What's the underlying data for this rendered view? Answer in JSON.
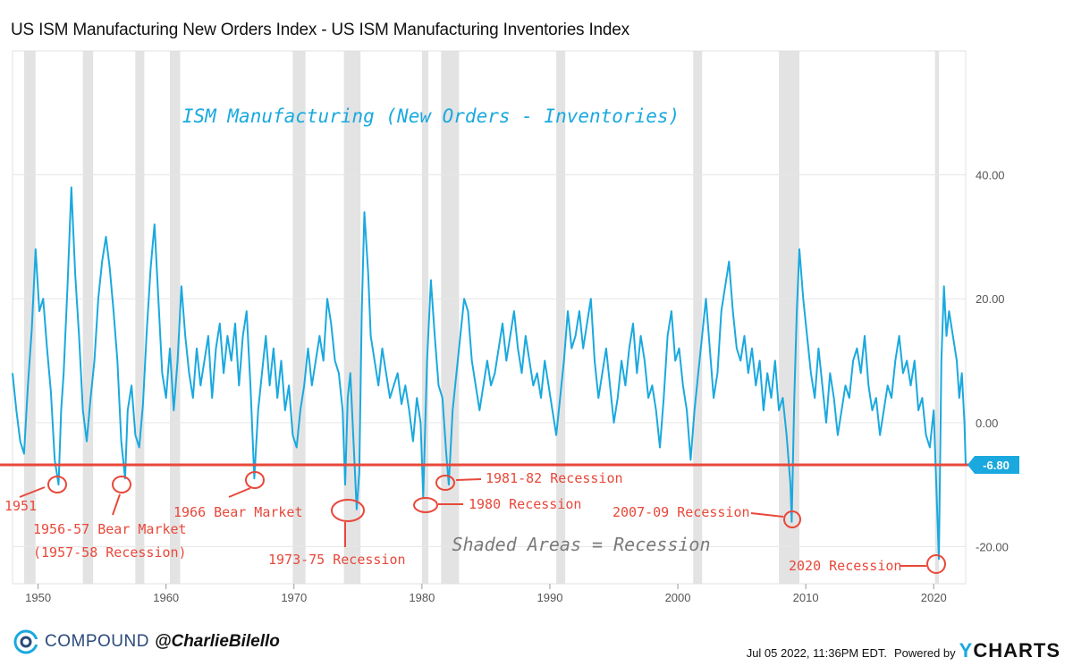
{
  "header": {
    "title": "US ISM Manufacturing New Orders Index - US ISM Manufacturing Inventories Index"
  },
  "footer": {
    "brand": "COMPOUND",
    "handle": "@CharlieBilello",
    "date": "Jul 05 2022, 11:36PM EDT.",
    "powered_by": "Powered by",
    "ycharts_y": "Y",
    "ycharts_rest": "CHARTS"
  },
  "colors": {
    "series": "#1aa9df",
    "annotation": "#e8483a",
    "recession": "#e3e3e3",
    "grid": "#e6e6e6"
  },
  "chart_data": {
    "type": "line",
    "title": "ISM Manufacturing (New Orders - Inventories)",
    "subtitle": "Shaded Areas = Recession",
    "x_range": [
      1948.0,
      2022.5
    ],
    "ylim": [
      -26,
      60
    ],
    "y_ticks": [
      40,
      20,
      0,
      -20
    ],
    "y_tick_labels": [
      "40.00",
      "20.00",
      "0.00",
      "-20.00"
    ],
    "x_ticks": [
      1950,
      1960,
      1970,
      1980,
      1990,
      2000,
      2010,
      2020
    ],
    "x_tick_labels": [
      "1950",
      "1960",
      "1970",
      "1980",
      "1990",
      "2000",
      "2010",
      "2020"
    ],
    "last_value": -6.8,
    "last_value_label": "-6.80",
    "threshold": -6.8,
    "recessions": [
      [
        1948.9,
        1949.8
      ],
      [
        1953.5,
        1954.3
      ],
      [
        1957.6,
        1958.3
      ],
      [
        1960.3,
        1961.1
      ],
      [
        1969.9,
        1970.9
      ],
      [
        1973.9,
        1975.2
      ],
      [
        1980.0,
        1980.5
      ],
      [
        1981.5,
        1982.9
      ],
      [
        1990.5,
        1991.2
      ],
      [
        2001.2,
        2001.9
      ],
      [
        2007.9,
        2009.5
      ],
      [
        2020.1,
        2020.4
      ]
    ],
    "series": [
      {
        "name": "New Orders - Inventories",
        "points": [
          [
            1948.0,
            8
          ],
          [
            1948.3,
            2
          ],
          [
            1948.6,
            -3
          ],
          [
            1948.9,
            -5
          ],
          [
            1949.2,
            6
          ],
          [
            1949.5,
            15
          ],
          [
            1949.8,
            28
          ],
          [
            1950.1,
            18
          ],
          [
            1950.4,
            20
          ],
          [
            1950.7,
            12
          ],
          [
            1951.0,
            5
          ],
          [
            1951.3,
            -6
          ],
          [
            1951.6,
            -10
          ],
          [
            1951.8,
            2
          ],
          [
            1952.0,
            8
          ],
          [
            1952.3,
            22
          ],
          [
            1952.6,
            38
          ],
          [
            1952.9,
            24
          ],
          [
            1953.2,
            14
          ],
          [
            1953.5,
            2
          ],
          [
            1953.8,
            -3
          ],
          [
            1954.1,
            4
          ],
          [
            1954.4,
            10
          ],
          [
            1954.7,
            20
          ],
          [
            1955.0,
            26
          ],
          [
            1955.3,
            30
          ],
          [
            1955.6,
            25
          ],
          [
            1955.9,
            18
          ],
          [
            1956.2,
            10
          ],
          [
            1956.5,
            -3
          ],
          [
            1956.8,
            -9
          ],
          [
            1957.0,
            2
          ],
          [
            1957.3,
            6
          ],
          [
            1957.6,
            -2
          ],
          [
            1957.9,
            -4
          ],
          [
            1958.2,
            3
          ],
          [
            1958.5,
            15
          ],
          [
            1958.8,
            25
          ],
          [
            1959.1,
            32
          ],
          [
            1959.4,
            20
          ],
          [
            1959.7,
            8
          ],
          [
            1960.0,
            4
          ],
          [
            1960.3,
            12
          ],
          [
            1960.6,
            2
          ],
          [
            1960.9,
            10
          ],
          [
            1961.2,
            22
          ],
          [
            1961.5,
            14
          ],
          [
            1961.8,
            8
          ],
          [
            1962.1,
            4
          ],
          [
            1962.4,
            12
          ],
          [
            1962.7,
            6
          ],
          [
            1963.0,
            10
          ],
          [
            1963.3,
            14
          ],
          [
            1963.6,
            4
          ],
          [
            1963.9,
            12
          ],
          [
            1964.2,
            16
          ],
          [
            1964.5,
            8
          ],
          [
            1964.8,
            14
          ],
          [
            1965.1,
            10
          ],
          [
            1965.4,
            16
          ],
          [
            1965.7,
            6
          ],
          [
            1966.0,
            14
          ],
          [
            1966.3,
            18
          ],
          [
            1966.6,
            6
          ],
          [
            1966.9,
            -9
          ],
          [
            1967.2,
            2
          ],
          [
            1967.5,
            8
          ],
          [
            1967.8,
            14
          ],
          [
            1968.1,
            6
          ],
          [
            1968.4,
            12
          ],
          [
            1968.7,
            4
          ],
          [
            1969.0,
            10
          ],
          [
            1969.3,
            2
          ],
          [
            1969.6,
            6
          ],
          [
            1969.9,
            -2
          ],
          [
            1970.2,
            -4
          ],
          [
            1970.5,
            2
          ],
          [
            1970.8,
            6
          ],
          [
            1971.1,
            12
          ],
          [
            1971.4,
            6
          ],
          [
            1971.7,
            10
          ],
          [
            1972.0,
            14
          ],
          [
            1972.3,
            10
          ],
          [
            1972.6,
            20
          ],
          [
            1972.9,
            16
          ],
          [
            1973.2,
            10
          ],
          [
            1973.5,
            8
          ],
          [
            1973.8,
            2
          ],
          [
            1974.0,
            -10
          ],
          [
            1974.2,
            4
          ],
          [
            1974.4,
            8
          ],
          [
            1974.7,
            -5
          ],
          [
            1974.9,
            -14
          ],
          [
            1975.1,
            -8
          ],
          [
            1975.3,
            18
          ],
          [
            1975.5,
            34
          ],
          [
            1975.8,
            24
          ],
          [
            1976.0,
            14
          ],
          [
            1976.3,
            10
          ],
          [
            1976.6,
            6
          ],
          [
            1976.9,
            12
          ],
          [
            1977.2,
            8
          ],
          [
            1977.5,
            4
          ],
          [
            1977.8,
            6
          ],
          [
            1978.1,
            8
          ],
          [
            1978.4,
            3
          ],
          [
            1978.7,
            6
          ],
          [
            1979.0,
            2
          ],
          [
            1979.3,
            -3
          ],
          [
            1979.6,
            4
          ],
          [
            1979.9,
            0
          ],
          [
            1980.1,
            -12
          ],
          [
            1980.4,
            10
          ],
          [
            1980.7,
            23
          ],
          [
            1981.0,
            14
          ],
          [
            1981.3,
            6
          ],
          [
            1981.6,
            4
          ],
          [
            1981.9,
            -5
          ],
          [
            1982.1,
            -10
          ],
          [
            1982.4,
            2
          ],
          [
            1982.7,
            8
          ],
          [
            1983.0,
            14
          ],
          [
            1983.3,
            20
          ],
          [
            1983.6,
            18
          ],
          [
            1983.9,
            10
          ],
          [
            1984.2,
            6
          ],
          [
            1984.5,
            2
          ],
          [
            1984.8,
            6
          ],
          [
            1985.1,
            10
          ],
          [
            1985.4,
            6
          ],
          [
            1985.7,
            8
          ],
          [
            1986.0,
            12
          ],
          [
            1986.3,
            16
          ],
          [
            1986.6,
            10
          ],
          [
            1986.9,
            14
          ],
          [
            1987.2,
            18
          ],
          [
            1987.5,
            12
          ],
          [
            1987.8,
            8
          ],
          [
            1988.1,
            14
          ],
          [
            1988.4,
            10
          ],
          [
            1988.7,
            6
          ],
          [
            1989.0,
            8
          ],
          [
            1989.3,
            4
          ],
          [
            1989.6,
            10
          ],
          [
            1989.9,
            6
          ],
          [
            1990.2,
            2
          ],
          [
            1990.5,
            -2
          ],
          [
            1990.8,
            4
          ],
          [
            1991.1,
            10
          ],
          [
            1991.4,
            18
          ],
          [
            1991.7,
            12
          ],
          [
            1992.0,
            14
          ],
          [
            1992.3,
            18
          ],
          [
            1992.6,
            12
          ],
          [
            1992.9,
            16
          ],
          [
            1993.2,
            20
          ],
          [
            1993.5,
            10
          ],
          [
            1993.8,
            4
          ],
          [
            1994.1,
            8
          ],
          [
            1994.4,
            12
          ],
          [
            1994.7,
            6
          ],
          [
            1995.0,
            0
          ],
          [
            1995.3,
            4
          ],
          [
            1995.6,
            10
          ],
          [
            1995.9,
            6
          ],
          [
            1996.2,
            12
          ],
          [
            1996.5,
            16
          ],
          [
            1996.8,
            8
          ],
          [
            1997.1,
            14
          ],
          [
            1997.4,
            10
          ],
          [
            1997.7,
            4
          ],
          [
            1998.0,
            6
          ],
          [
            1998.3,
            2
          ],
          [
            1998.6,
            -4
          ],
          [
            1998.9,
            4
          ],
          [
            1999.2,
            14
          ],
          [
            1999.5,
            18
          ],
          [
            1999.8,
            10
          ],
          [
            2000.1,
            12
          ],
          [
            2000.4,
            6
          ],
          [
            2000.7,
            2
          ],
          [
            2001.0,
            -6
          ],
          [
            2001.3,
            2
          ],
          [
            2001.6,
            8
          ],
          [
            2001.9,
            14
          ],
          [
            2002.2,
            20
          ],
          [
            2002.5,
            12
          ],
          [
            2002.8,
            4
          ],
          [
            2003.1,
            8
          ],
          [
            2003.4,
            18
          ],
          [
            2003.7,
            22
          ],
          [
            2004.0,
            26
          ],
          [
            2004.3,
            18
          ],
          [
            2004.6,
            12
          ],
          [
            2004.9,
            10
          ],
          [
            2005.2,
            14
          ],
          [
            2005.5,
            8
          ],
          [
            2005.8,
            12
          ],
          [
            2006.1,
            6
          ],
          [
            2006.4,
            10
          ],
          [
            2006.7,
            2
          ],
          [
            2007.0,
            8
          ],
          [
            2007.3,
            4
          ],
          [
            2007.6,
            10
          ],
          [
            2007.9,
            2
          ],
          [
            2008.2,
            4
          ],
          [
            2008.5,
            -2
          ],
          [
            2008.8,
            -10
          ],
          [
            2008.9,
            -16
          ],
          [
            2009.1,
            4
          ],
          [
            2009.3,
            18
          ],
          [
            2009.5,
            28
          ],
          [
            2009.8,
            20
          ],
          [
            2010.1,
            14
          ],
          [
            2010.4,
            8
          ],
          [
            2010.7,
            4
          ],
          [
            2011.0,
            12
          ],
          [
            2011.3,
            6
          ],
          [
            2011.6,
            0
          ],
          [
            2011.9,
            8
          ],
          [
            2012.2,
            4
          ],
          [
            2012.5,
            -2
          ],
          [
            2012.8,
            2
          ],
          [
            2013.1,
            6
          ],
          [
            2013.4,
            4
          ],
          [
            2013.7,
            10
          ],
          [
            2014.0,
            12
          ],
          [
            2014.3,
            8
          ],
          [
            2014.6,
            14
          ],
          [
            2014.9,
            6
          ],
          [
            2015.2,
            2
          ],
          [
            2015.5,
            4
          ],
          [
            2015.8,
            -2
          ],
          [
            2016.1,
            2
          ],
          [
            2016.4,
            6
          ],
          [
            2016.7,
            4
          ],
          [
            2017.0,
            10
          ],
          [
            2017.3,
            14
          ],
          [
            2017.6,
            8
          ],
          [
            2017.9,
            10
          ],
          [
            2018.2,
            6
          ],
          [
            2018.5,
            10
          ],
          [
            2018.8,
            2
          ],
          [
            2019.1,
            4
          ],
          [
            2019.4,
            -2
          ],
          [
            2019.7,
            -4
          ],
          [
            2020.0,
            2
          ],
          [
            2020.2,
            -10
          ],
          [
            2020.4,
            -22
          ],
          [
            2020.6,
            10
          ],
          [
            2020.8,
            22
          ],
          [
            2021.0,
            14
          ],
          [
            2021.2,
            18
          ],
          [
            2021.5,
            14
          ],
          [
            2021.8,
            10
          ],
          [
            2022.0,
            4
          ],
          [
            2022.2,
            8
          ],
          [
            2022.4,
            0
          ],
          [
            2022.5,
            -6.8
          ]
        ]
      }
    ],
    "annotations": [
      {
        "label": "1951",
        "x": 1951.6,
        "y": -10
      },
      {
        "label": "1956-57 Bear Market",
        "label2": "(1957-58 Recession)",
        "x": 1956.8,
        "y": -9
      },
      {
        "label": "1966 Bear Market",
        "x": 1966.9,
        "y": -9
      },
      {
        "label": "1973-75 Recession",
        "x": 1974.4,
        "y": -14
      },
      {
        "label": "1980 Recession",
        "x": 1980.2,
        "y": -13.5
      },
      {
        "label": "1981-82 Recession",
        "x": 1982.0,
        "y": -10
      },
      {
        "label": "2007-09 Recession",
        "x": 2008.9,
        "y": -16
      },
      {
        "label": "2020 Recession",
        "x": 2020.4,
        "y": -23
      }
    ]
  }
}
